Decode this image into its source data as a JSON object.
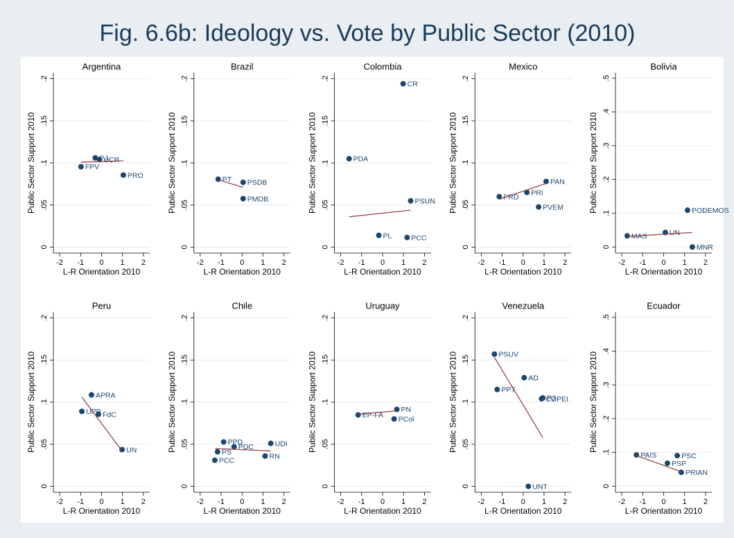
{
  "title": "Fig. 6.6b: Ideology vs. Vote by Public Sector  (2010)",
  "chart_data": [
    {
      "type": "scatter",
      "title": "Argentina",
      "labels": [
        "FPV",
        "PJ",
        "UCR",
        "PRO"
      ],
      "x": [
        -0.98,
        -0.3,
        -0.1,
        1.04
      ],
      "values": [
        0.0955,
        0.106,
        0.104,
        0.0856
      ],
      "fit_x": [
        -0.98,
        1.04
      ],
      "fit_y": [
        0.101,
        0.1025
      ],
      "xlim": [
        -2.3,
        2.3
      ],
      "ylim": [
        -0.007,
        0.207
      ],
      "xticks": [
        -2,
        -1,
        0,
        1,
        2
      ],
      "yticks": [
        0,
        {
          "value": 0.05,
          "label": ".05"
        },
        {
          "value": 0.1,
          "label": ".1"
        },
        {
          "value": 0.15,
          "label": ".15"
        },
        {
          "value": 0.2,
          "label": ".2"
        }
      ],
      "xlabel": "L-R Orientation 2010",
      "ylabel": "Public Sector Support 2010",
      "color": "#1a476f",
      "fit_color": "#90353b",
      "grid": true
    },
    {
      "type": "scatter",
      "title": "Brazil",
      "labels": [
        "PT",
        "PSDB",
        "PMDB"
      ],
      "x": [
        -1.14,
        0.05,
        0.05
      ],
      "values": [
        0.0807,
        0.077,
        0.0576
      ],
      "fit_x": [
        -1.14,
        0.05
      ],
      "fit_y": [
        0.08,
        0.071
      ],
      "xlim": [
        -2.3,
        2.3
      ],
      "ylim": [
        -0.007,
        0.207
      ],
      "xticks": [
        -2,
        -1,
        0,
        1,
        2
      ],
      "yticks": [
        0,
        {
          "value": 0.05,
          "label": ".05"
        },
        {
          "value": 0.1,
          "label": ".1"
        },
        {
          "value": 0.15,
          "label": ".15"
        },
        {
          "value": 0.2,
          "label": ".2"
        }
      ],
      "xlabel": "L-R Orientation 2010",
      "ylabel": "Public Sector Support 2010",
      "color": "#1a476f",
      "fit_color": "#90353b",
      "grid": true
    },
    {
      "type": "scatter",
      "title": "Colombia",
      "labels": [
        "CR",
        "PDA",
        "PSUN",
        "PL",
        "PCC"
      ],
      "x": [
        0.98,
        -1.6,
        1.34,
        -0.18,
        1.17
      ],
      "values": [
        0.194,
        0.105,
        0.055,
        0.014,
        0.0115
      ],
      "fit_x": [
        -1.6,
        1.34
      ],
      "fit_y": [
        0.036,
        0.044
      ],
      "xlim": [
        -2.3,
        2.3
      ],
      "ylim": [
        -0.007,
        0.207
      ],
      "xticks": [
        -2,
        -1,
        0,
        1,
        2
      ],
      "yticks": [
        0,
        {
          "value": 0.05,
          "label": ".05"
        },
        {
          "value": 0.1,
          "label": ".1"
        },
        {
          "value": 0.15,
          "label": ".15"
        },
        {
          "value": 0.2,
          "label": ".2"
        }
      ],
      "xlabel": "L-R Orientation 2010",
      "ylabel": "Public Sector Support 2010",
      "color": "#1a476f",
      "fit_color": "#90353b",
      "grid": true
    },
    {
      "type": "scatter",
      "title": "Mexico",
      "labels": [
        "PRD",
        "PRI",
        "PAN",
        "PVEM"
      ],
      "x": [
        -1.14,
        0.18,
        1.1,
        0.74
      ],
      "values": [
        0.06,
        0.065,
        0.078,
        0.0477
      ],
      "fit_x": [
        -1.14,
        1.1
      ],
      "fit_y": [
        0.0568,
        0.0757
      ],
      "xlim": [
        -2.3,
        2.3
      ],
      "ylim": [
        -0.007,
        0.207
      ],
      "xticks": [
        -2,
        -1,
        0,
        1,
        2
      ],
      "yticks": [
        0,
        {
          "value": 0.05,
          "label": ".05"
        },
        {
          "value": 0.1,
          "label": ".1"
        },
        {
          "value": 0.15,
          "label": ".15"
        },
        {
          "value": 0.2,
          "label": ".2"
        }
      ],
      "xlabel": "L-R Orientation 2010",
      "ylabel": "Public Sector Support 2010",
      "color": "#1a476f",
      "fit_color": "#90353b",
      "grid": true
    },
    {
      "type": "scatter",
      "title": "Bolivia",
      "labels": [
        "MAS",
        "UN",
        "PODEMOS",
        "MNR"
      ],
      "x": [
        -1.74,
        0.08,
        1.14,
        1.37
      ],
      "values": [
        0.033,
        0.043,
        0.109,
        0
      ],
      "fit_x": [
        -1.74,
        1.37
      ],
      "fit_y": [
        0.031,
        0.043
      ],
      "xlim": [
        -2.3,
        2.3
      ],
      "ylim": [
        -0.018,
        0.516
      ],
      "xticks": [
        -2,
        -1,
        0,
        1,
        2
      ],
      "yticks": [
        0,
        {
          "value": 0.1,
          "label": ".1"
        },
        {
          "value": 0.2,
          "label": ".2"
        },
        {
          "value": 0.3,
          "label": ".3"
        },
        {
          "value": 0.4,
          "label": ".4"
        },
        {
          "value": 0.5,
          "label": ".5"
        }
      ],
      "xlabel": "L-R Orientation 2010",
      "ylabel": "Public Sector Support 2010",
      "color": "#1a476f",
      "fit_color": "#90353b",
      "grid": true
    },
    {
      "type": "scatter",
      "title": "Peru",
      "labels": [
        "APRA",
        "UPP",
        "FdC",
        "UN"
      ],
      "x": [
        -0.48,
        -0.94,
        -0.15,
        0.98
      ],
      "values": [
        0.1086,
        0.089,
        0.0856,
        0.0436
      ],
      "fit_x": [
        -0.94,
        0.98
      ],
      "fit_y": [
        0.106,
        0.042
      ],
      "xlim": [
        -2.3,
        2.3
      ],
      "ylim": [
        -0.007,
        0.207
      ],
      "xticks": [
        -2,
        -1,
        0,
        1,
        2
      ],
      "yticks": [
        0,
        {
          "value": 0.05,
          "label": ".05"
        },
        {
          "value": 0.1,
          "label": ".1"
        },
        {
          "value": 0.15,
          "label": ".15"
        },
        {
          "value": 0.2,
          "label": ".2"
        }
      ],
      "xlabel": "L-R Orientation 2010",
      "ylabel": "Public Sector Support 2010",
      "color": "#1a476f",
      "fit_color": "#90353b",
      "grid": true
    },
    {
      "type": "scatter",
      "title": "Chile",
      "labels": [
        "PPD",
        "PDC",
        "PS",
        "PCC",
        "UDI",
        "RN"
      ],
      "x": [
        -0.88,
        -0.38,
        -1.17,
        -1.3,
        1.37,
        1.1
      ],
      "values": [
        0.0527,
        0.047,
        0.041,
        0.031,
        0.051,
        0.036
      ],
      "fit_x": [
        -1.3,
        1.37
      ],
      "fit_y": [
        0.045,
        0.042
      ],
      "xlim": [
        -2.3,
        2.3
      ],
      "ylim": [
        -0.007,
        0.207
      ],
      "xticks": [
        -2,
        -1,
        0,
        1,
        2
      ],
      "yticks": [
        0,
        {
          "value": 0.05,
          "label": ".05"
        },
        {
          "value": 0.1,
          "label": ".1"
        },
        {
          "value": 0.15,
          "label": ".15"
        },
        {
          "value": 0.2,
          "label": ".2"
        }
      ],
      "xlabel": "L-R Orientation 2010",
      "ylabel": "Public Sector Support 2010",
      "color": "#1a476f",
      "fit_color": "#90353b",
      "grid": true
    },
    {
      "type": "scatter",
      "title": "Uruguay",
      "labels": [
        "EP-FA",
        "PN",
        "PCol"
      ],
      "x": [
        -1.17,
        0.68,
        0.55
      ],
      "values": [
        0.0848,
        0.0914,
        0.08
      ],
      "fit_x": [
        -1.17,
        0.68
      ],
      "fit_y": [
        0.0856,
        0.0897
      ],
      "xlim": [
        -2.3,
        2.3
      ],
      "ylim": [
        -0.007,
        0.207
      ],
      "xticks": [
        -2,
        -1,
        0,
        1,
        2
      ],
      "yticks": [
        0,
        {
          "value": 0.05,
          "label": ".05"
        },
        {
          "value": 0.1,
          "label": ".1"
        },
        {
          "value": 0.15,
          "label": ".15"
        },
        {
          "value": 0.2,
          "label": ".2"
        }
      ],
      "xlabel": "L-R Orientation 2010",
      "ylabel": "Public Sector Support 2010",
      "color": "#1a476f",
      "fit_color": "#90353b",
      "grid": true
    },
    {
      "type": "scatter",
      "title": "Venezuela",
      "labels": [
        "PSUV",
        "AD",
        "PPT",
        "PJ",
        "COPEI",
        "UNT"
      ],
      "x": [
        -1.37,
        0.05,
        -1.24,
        0.94,
        0.88,
        0.25
      ],
      "values": [
        0.157,
        0.129,
        0.115,
        0.105,
        0.104,
        0
      ],
      "fit_x": [
        -1.37,
        0.94
      ],
      "fit_y": [
        0.153,
        0.058
      ],
      "xlim": [
        -2.3,
        2.3
      ],
      "ylim": [
        -0.007,
        0.207
      ],
      "xticks": [
        -2,
        -1,
        0,
        1,
        2
      ],
      "yticks": [
        0,
        {
          "value": 0.05,
          "label": ".05"
        },
        {
          "value": 0.1,
          "label": ".1"
        },
        {
          "value": 0.15,
          "label": ".15"
        },
        {
          "value": 0.2,
          "label": ".2"
        }
      ],
      "xlabel": "L-R Orientation 2010",
      "ylabel": "Public Sector Support 2010",
      "color": "#1a476f",
      "fit_color": "#90353b",
      "grid": true
    },
    {
      "type": "scatter",
      "title": "Ecuador",
      "labels": [
        "PAIS",
        "PSC",
        "PSP",
        "PRIAN"
      ],
      "x": [
        -1.3,
        0.65,
        0.18,
        0.84
      ],
      "values": [
        0.0926,
        0.0905,
        0.068,
        0.041
      ],
      "fit_x": [
        -1.3,
        0.84
      ],
      "fit_y": [
        0.0905,
        0.043
      ],
      "xlim": [
        -2.3,
        2.3
      ],
      "ylim": [
        -0.018,
        0.516
      ],
      "xticks": [
        -2,
        -1,
        0,
        1,
        2
      ],
      "yticks": [
        0,
        {
          "value": 0.1,
          "label": ".1"
        },
        {
          "value": 0.2,
          "label": ".2"
        },
        {
          "value": 0.3,
          "label": ".3"
        },
        {
          "value": 0.4,
          "label": ".4"
        },
        {
          "value": 0.5,
          "label": ".5"
        }
      ],
      "xlabel": "L-R Orientation 2010",
      "ylabel": "Public Sector Support 2010",
      "color": "#1a476f",
      "fit_color": "#90353b",
      "grid": true
    }
  ]
}
